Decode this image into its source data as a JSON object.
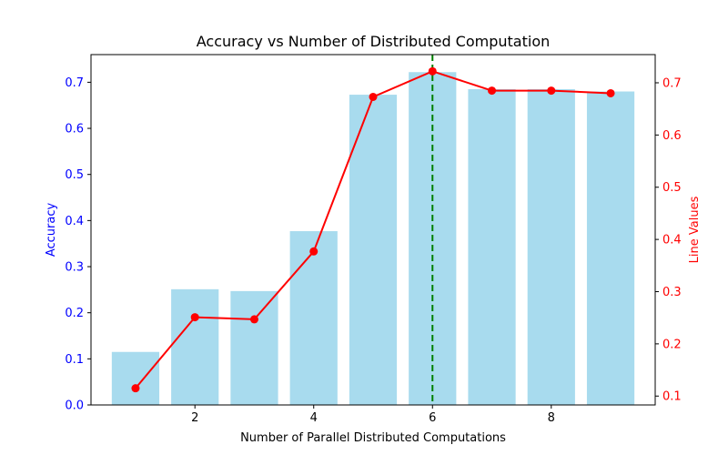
{
  "chart_data": {
    "type": "bar",
    "title": "Accuracy vs Number of Distributed Computation",
    "xlabel": "Number of Parallel Distributed Computations",
    "ylabel": "Accuracy",
    "ylabel_right": "Line Values",
    "x": [
      1,
      2,
      3,
      4,
      5,
      6,
      7,
      8,
      9
    ],
    "xlim": [
      0.25,
      9.75
    ],
    "xticks": [
      2,
      4,
      6,
      8
    ],
    "ylim": [
      0,
      0.76
    ],
    "yticks": [
      0.0,
      0.1,
      0.2,
      0.3,
      0.4,
      0.5,
      0.6,
      0.7
    ],
    "ylim_right": [
      0.083,
      0.754
    ],
    "yticks_right": [
      0.1,
      0.2,
      0.3,
      0.4,
      0.5,
      0.6,
      0.7
    ],
    "bar_values": [
      0.115,
      0.251,
      0.247,
      0.377,
      0.673,
      0.722,
      0.685,
      0.685,
      0.68
    ],
    "line_values": [
      0.115,
      0.251,
      0.247,
      0.377,
      0.673,
      0.722,
      0.685,
      0.685,
      0.68
    ],
    "vline_x": 6,
    "colors": {
      "bar": "#a8dbee",
      "line": "#ff0000",
      "vline": "#008000",
      "left_axis": "#0000ff",
      "right_axis": "#ff0000"
    },
    "grid": false
  }
}
